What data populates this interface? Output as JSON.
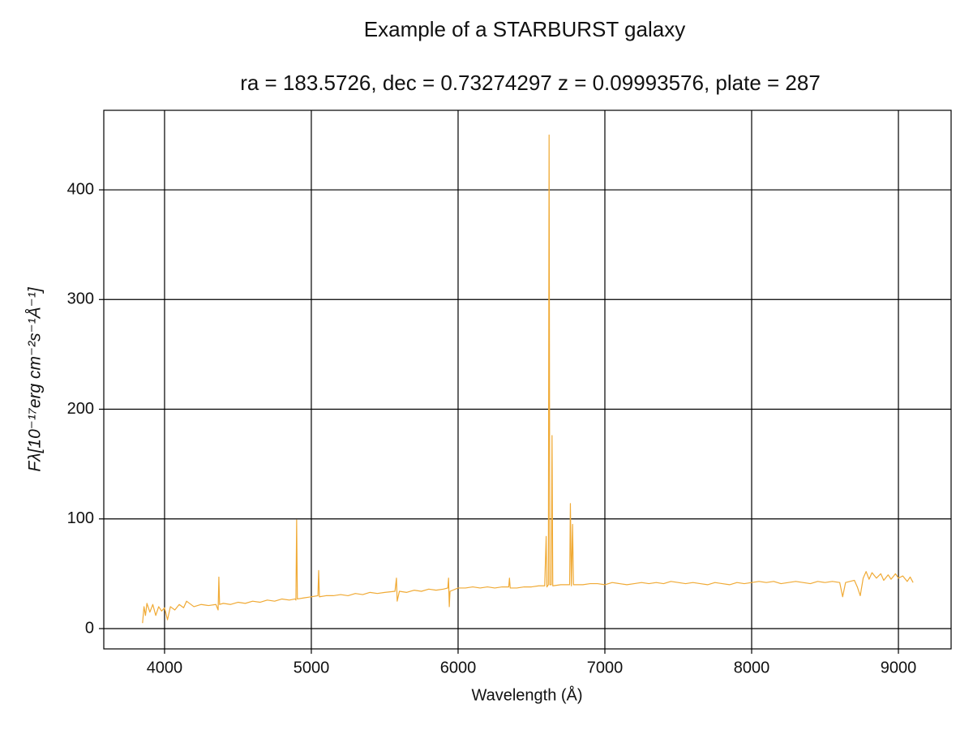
{
  "chart_data": {
    "type": "line",
    "title": "Example of a STARBURST galaxy",
    "subtitle": "ra = 183.5726, dec = 0.73274297 z = 0.09993576, plate = 287",
    "xlabel": "Wavelength (Å)",
    "ylabel": "Fλ[10⁻¹⁷erg cm⁻²s⁻¹Å⁻¹]",
    "color": "#f0aa35",
    "grid": true,
    "xlim": [
      3586,
      9359
    ],
    "ylim": [
      -18.5,
      472.5
    ],
    "xticks": [
      4000,
      5000,
      6000,
      7000,
      8000,
      9000
    ],
    "yticks": [
      0,
      100,
      200,
      300,
      400
    ],
    "x": [
      3850,
      3860,
      3870,
      3880,
      3900,
      3920,
      3940,
      3960,
      3980,
      4000,
      4020,
      4040,
      4070,
      4100,
      4130,
      4150,
      4200,
      4250,
      4300,
      4350,
      4365,
      4370,
      4375,
      4400,
      4450,
      4500,
      4550,
      4600,
      4650,
      4700,
      4750,
      4800,
      4850,
      4890,
      4895,
      4900,
      4905,
      4950,
      5000,
      5045,
      5050,
      5055,
      5100,
      5150,
      5200,
      5250,
      5300,
      5350,
      5400,
      5450,
      5500,
      5570,
      5580,
      5585,
      5600,
      5650,
      5700,
      5750,
      5800,
      5850,
      5900,
      5930,
      5935,
      5940,
      5945,
      6000,
      6050,
      6100,
      6150,
      6200,
      6250,
      6300,
      6345,
      6350,
      6355,
      6400,
      6450,
      6500,
      6550,
      6590,
      6600,
      6605,
      6615,
      6620,
      6625,
      6635,
      6640,
      6645,
      6700,
      6760,
      6765,
      6772,
      6780,
      6786,
      6850,
      6900,
      6950,
      7000,
      7050,
      7100,
      7150,
      7200,
      7250,
      7300,
      7350,
      7400,
      7450,
      7500,
      7550,
      7600,
      7650,
      7700,
      7750,
      7800,
      7850,
      7900,
      7950,
      8000,
      8050,
      8100,
      8150,
      8200,
      8250,
      8300,
      8350,
      8400,
      8450,
      8500,
      8550,
      8600,
      8620,
      8640,
      8700,
      8720,
      8740,
      8760,
      8780,
      8800,
      8820,
      8850,
      8880,
      8900,
      8930,
      8950,
      8980,
      9000,
      9030,
      9060,
      9080,
      9100
    ],
    "values": [
      5,
      20,
      12,
      23,
      15,
      22,
      12,
      20,
      16,
      19,
      8,
      20,
      17,
      22,
      19,
      25,
      20,
      22,
      21,
      22,
      17,
      47,
      22,
      23,
      22,
      24,
      23,
      25,
      24,
      26,
      25,
      27,
      26,
      27,
      26,
      99,
      27,
      28,
      29,
      30,
      53,
      29,
      30,
      30,
      31,
      30,
      32,
      31,
      33,
      32,
      33,
      34,
      46,
      25,
      34,
      33,
      35,
      34,
      36,
      35,
      36,
      37,
      46,
      20,
      34,
      37,
      37,
      38,
      37,
      38,
      37,
      38,
      38,
      46,
      37,
      37,
      38,
      38,
      39,
      39,
      84,
      38,
      40,
      450,
      40,
      40,
      176,
      39,
      40,
      40,
      114,
      39,
      95,
      40,
      40,
      41,
      41,
      40,
      42,
      41,
      40,
      41,
      42,
      41,
      42,
      41,
      43,
      42,
      41,
      42,
      41,
      40,
      42,
      41,
      40,
      42,
      41,
      42,
      43,
      42,
      43,
      41,
      42,
      43,
      42,
      41,
      43,
      42,
      43,
      42,
      29,
      42,
      44,
      38,
      30,
      46,
      52,
      45,
      51,
      46,
      50,
      44,
      49,
      45,
      50,
      46,
      48,
      43,
      47,
      42
    ]
  }
}
